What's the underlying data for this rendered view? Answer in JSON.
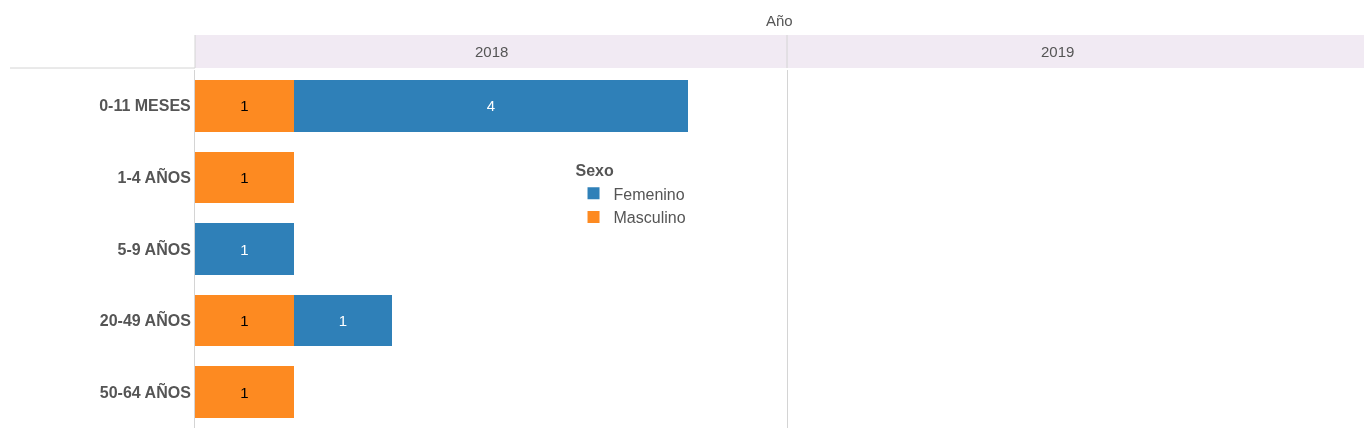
{
  "chart_data": {
    "type": "bar",
    "orientation": "horizontal",
    "stacked": true,
    "title": "2018",
    "annotations": [
      "Año",
      "2019"
    ],
    "legend_title": "Sexo",
    "legend": "top right",
    "data_labels": true,
    "tick_labels": "y",
    "xlim": [
      0,
      6
    ],
    "categories": [
      "0-11 MESES",
      "1-4 AÑOS",
      "5-9 AÑOS",
      "20-49 AÑOS",
      "50-64 AÑOS"
    ],
    "series": [
      {
        "name": "Masculino",
        "color": "#fd8a21",
        "values": [
          1,
          1,
          null,
          1,
          1
        ]
      },
      {
        "name": "Femenino",
        "color": "#2f80b8",
        "values": [
          4,
          null,
          1,
          1,
          null
        ]
      }
    ]
  }
}
